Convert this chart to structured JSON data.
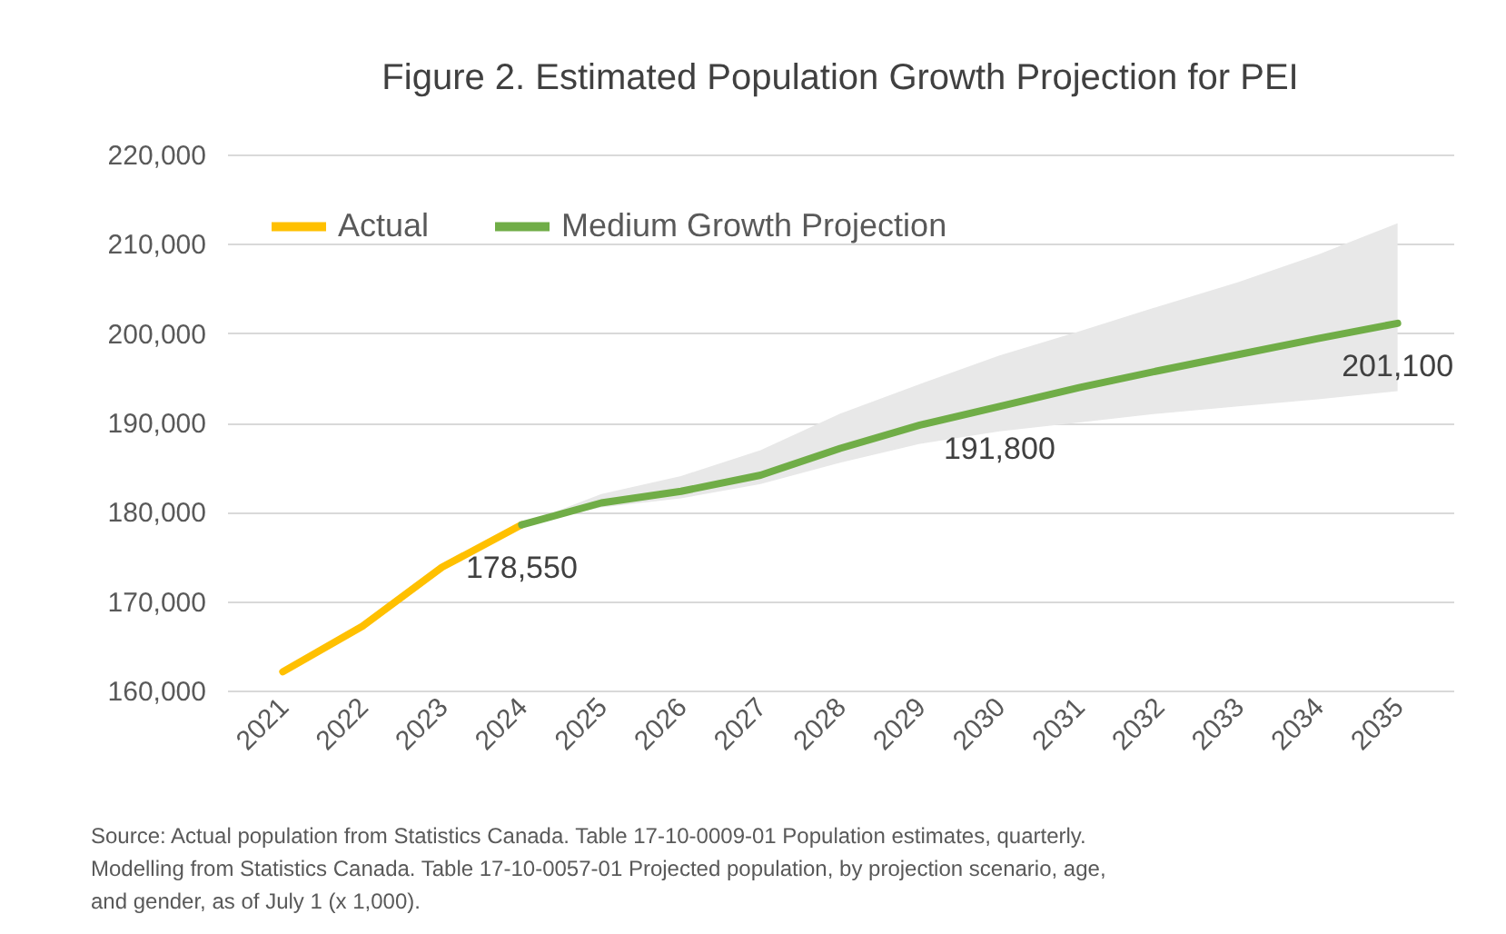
{
  "chart_data": {
    "type": "line",
    "title": "Figure 2. Estimated Population Growth Projection for PEI",
    "categories": [
      "2021",
      "2022",
      "2023",
      "2024",
      "2025",
      "2026",
      "2027",
      "2028",
      "2029",
      "2030",
      "2031",
      "2032",
      "2033",
      "2034",
      "2035"
    ],
    "series": [
      {
        "name": "Actual",
        "color": "#ffc000",
        "values": [
          162100,
          167200,
          173800,
          178550,
          null,
          null,
          null,
          null,
          null,
          null,
          null,
          null,
          null,
          null,
          null
        ],
        "value_labels": [
          null,
          null,
          null,
          "178,550",
          null,
          null,
          null,
          null,
          null,
          null,
          null,
          null,
          null,
          null,
          null
        ]
      },
      {
        "name": "Medium Growth Projection",
        "color": "#70ad47",
        "values": [
          null,
          null,
          null,
          178550,
          181000,
          182300,
          184100,
          187100,
          189700,
          191800,
          193900,
          195800,
          197600,
          199400,
          201100
        ],
        "lower": [
          null,
          null,
          null,
          178550,
          180500,
          181500,
          183100,
          185500,
          187600,
          189000,
          190000,
          191000,
          191800,
          192600,
          193500
        ],
        "upper": [
          null,
          null,
          null,
          178550,
          182000,
          184000,
          186900,
          191000,
          194300,
          197500,
          200200,
          203000,
          205700,
          208800,
          212300
        ],
        "value_labels": [
          null,
          null,
          null,
          null,
          null,
          null,
          null,
          null,
          null,
          "191,800",
          null,
          null,
          null,
          null,
          "201,100"
        ]
      }
    ],
    "ylim": [
      160000,
      220000
    ],
    "yticks": [
      {
        "value": 160000,
        "label": "160,000"
      },
      {
        "value": 170000,
        "label": "170,000"
      },
      {
        "value": 180000,
        "label": "180,000"
      },
      {
        "value": 190000,
        "label": "190,000"
      },
      {
        "value": 200000,
        "label": "200,000"
      },
      {
        "value": 210000,
        "label": "210,000"
      },
      {
        "value": 220000,
        "label": "220,000"
      }
    ],
    "grid": "y",
    "legend": "top left",
    "marker": "none",
    "line_style": "solid",
    "annotations": [
      "Source: Actual population from Statistics Canada. Table 17-10-0009-01 Population estimates, quarterly.",
      "Modelling from Statistics Canada.  Table 17-10-0057-01  Projected population, by projection scenario, age,",
      "and gender, as of July 1 (x 1,000)."
    ]
  }
}
